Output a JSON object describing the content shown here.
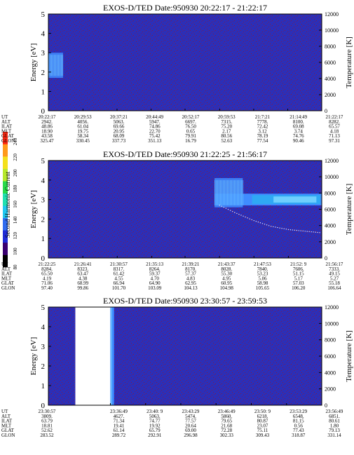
{
  "colorbar": {
    "label": "Second Harmonic Current",
    "ticks": [
      "240",
      "220",
      "200",
      "180",
      "160",
      "140",
      "120",
      "100",
      "80"
    ],
    "colors": [
      "#000000",
      "#3a0070",
      "#1f2ad6",
      "#2f6cf0",
      "#1fc7f0",
      "#20e0b0",
      "#28d94a",
      "#b6e82c",
      "#f4e01c",
      "#ff9a1a",
      "#ff2a12"
    ]
  },
  "colors": {
    "background": "#2b2fb8",
    "noise": "#8b1a3a",
    "trace": "#e8e0f8",
    "bright": "#7fd8ff",
    "mid": "#3f8cff"
  },
  "chart_data": [
    {
      "type": "heatmap",
      "title": "EXOS-D/TED   Date:950930  20:22:17 - 21:22:17",
      "ylabel": "Energy [eV]",
      "y2label": "Temperature [K]",
      "ylim": [
        0,
        5
      ],
      "yticks": [
        "0",
        "1",
        "2",
        "3",
        "4",
        "5"
      ],
      "y2lim": [
        0,
        12000
      ],
      "y2ticks": [
        "0",
        "2000",
        "4000",
        "6000",
        "8000",
        "10000",
        "12000"
      ],
      "table": {
        "labels": [
          "UT",
          "ALT",
          "ILAT",
          "MLT",
          "GLAT",
          "GLON"
        ],
        "columns": [
          [
            "20:22:17",
            "2942.",
            "48.86",
            "18.90",
            "43.58",
            "325.47"
          ],
          [
            "20:29:53",
            "4056.",
            "61.04",
            "19.75",
            "58.34",
            "330.45"
          ],
          [
            "20:37:21",
            "5063.",
            "69.66",
            "20.95",
            "68.09",
            "337.73"
          ],
          [
            "20:44:49",
            "5947.",
            "74.86",
            "22.70",
            "75.42",
            "351.13"
          ],
          [
            "20:52:17",
            "6697.",
            "76.50",
            "0.65",
            "79.91",
            "16.79"
          ],
          [
            "20:59:53",
            "7315.",
            "75.20",
            "2.17",
            "80.56",
            "52.63"
          ],
          [
            "21:7:21",
            "7778.",
            "72.42",
            "3.12",
            "78.19",
            "77.54"
          ],
          [
            "21:14:49",
            "8100.",
            "69.08",
            "3.74",
            "74.76",
            "90.46"
          ],
          [
            "21:22:17",
            "8282.",
            "65.57",
            "4.18",
            "71.13",
            "97.31"
          ]
        ]
      },
      "features": [
        {
          "kind": "enhancement",
          "x_from": "20:22:17",
          "x_to": "20:25:30",
          "energy_from": 1.7,
          "energy_to": 3.0
        }
      ]
    },
    {
      "type": "heatmap",
      "title": "EXOS-D/TED   Date:950930  21:22:25 - 21:56:17",
      "ylabel": "Energy [eV]",
      "y2label": "Temperature [K]",
      "ylim": [
        0,
        5
      ],
      "yticks": [
        "0",
        "1",
        "2",
        "3",
        "4",
        "5"
      ],
      "y2lim": [
        0,
        12000
      ],
      "y2ticks": [
        "0",
        "2000",
        "4000",
        "6000",
        "8000",
        "10000",
        "12000"
      ],
      "table": {
        "labels": [
          "UT",
          "ALT",
          "ILAT",
          "MLT",
          "GLAT",
          "GLON"
        ],
        "columns": [
          [
            "21:22:25",
            "8284.",
            "65.50",
            "4.19",
            "71.06",
            "97.40"
          ],
          [
            "21:26:41",
            "8323.",
            "63.47",
            "4.38",
            "68.99",
            "99.86"
          ],
          [
            "21:30:57",
            "8317.",
            "61.42",
            "4.55",
            "66.94",
            "101.70"
          ],
          [
            "21:35:13",
            "8264.",
            "59.37",
            "4.70",
            "64.90",
            "103.09"
          ],
          [
            "21:39:21",
            "8170.",
            "57.37",
            "4.83",
            "62.95",
            "104.13"
          ],
          [
            "21:43:37",
            "8028.",
            "55.30",
            "4.95",
            "60.95",
            "104.98"
          ],
          [
            "21:47:53",
            "7840.",
            "53.23",
            "5.06",
            "58.98",
            "105.65"
          ],
          [
            "21:52: 9",
            "7606.",
            "51.15",
            "5.17",
            "57.03",
            "106.20"
          ],
          [
            "21:56:17",
            "7333.",
            "49.15",
            "5.27",
            "55.18",
            "106.64"
          ]
        ]
      },
      "features": [
        {
          "kind": "band",
          "x_from": "21:43:00",
          "x_to": "21:56:17",
          "energy_from": 2.7,
          "energy_to": 3.3
        },
        {
          "kind": "enhancement",
          "x_from": "21:43:00",
          "x_to": "21:46:30",
          "energy_from": 2.6,
          "energy_to": 4.1
        },
        {
          "kind": "temperature-trace",
          "points": [
            [
              "21:43:37",
              6500
            ],
            [
              "21:45:30",
              5600
            ],
            [
              "21:47:53",
              4600
            ],
            [
              "21:50:00",
              3900
            ],
            [
              "21:52: 9",
              3500
            ],
            [
              "21:56:17",
              3100
            ]
          ]
        }
      ]
    },
    {
      "type": "heatmap",
      "title": "EXOS-D/TED   Date:950930  23:30:57 - 23:59:53",
      "ylabel": "Energy [eV]",
      "y2label": "Temperature [K]",
      "ylim": [
        0,
        5
      ],
      "yticks": [
        "0",
        "1",
        "2",
        "3",
        "4",
        "5"
      ],
      "y2lim": [
        0,
        12000
      ],
      "y2ticks": [
        "0",
        "2000",
        "4000",
        "6000",
        "8000",
        "10000",
        "12000"
      ],
      "table": {
        "labels": [
          "UT",
          "ALT",
          "ILAT",
          "MLT",
          "GLAT",
          "GLON"
        ],
        "columns": [
          [
            "23:30:57",
            "3809.",
            "63.79",
            "18.81",
            "52.62",
            "283.52"
          ],
          [
            "",
            "",
            "",
            "",
            "",
            ""
          ],
          [
            "23:36:49",
            "4627.",
            "71.34",
            "19.41",
            "61.14",
            "289.72"
          ],
          [
            "23:40: 9",
            "5063.",
            "74.77",
            "19.92",
            "65.79",
            "292.91"
          ],
          [
            "23:43:29",
            "5474.",
            "77.57",
            "20.64",
            "69.00",
            "296.98"
          ],
          [
            "23:46:49",
            "5860.",
            "79.65",
            "21.68",
            "72.28",
            "302.33"
          ],
          [
            "23:50: 9",
            "6218.",
            "80.87",
            "23.07",
            "75.11",
            "309.43"
          ],
          [
            "23:53:29",
            "6548.",
            "81.15",
            "0.56",
            "77.43",
            "318.87"
          ],
          [
            "23:56:49",
            "6851.",
            "80.61",
            "1.80",
            "79.13",
            "331.14"
          ]
        ]
      },
      "features": [
        {
          "kind": "data-gap",
          "x_from": "23:33:30",
          "x_to": "23:36:49"
        },
        {
          "kind": "edge",
          "x_from": "23:36:49",
          "x_to": "23:37:10"
        }
      ]
    }
  ]
}
